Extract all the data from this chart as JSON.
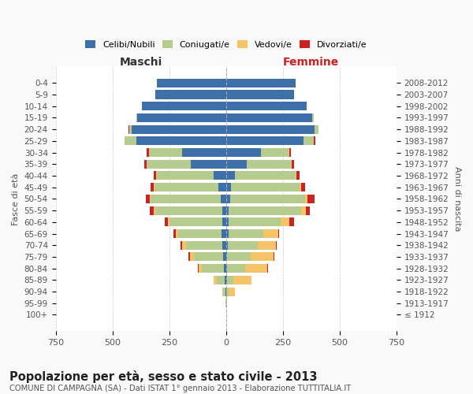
{
  "age_groups": [
    "100+",
    "95-99",
    "90-94",
    "85-89",
    "80-84",
    "75-79",
    "70-74",
    "65-69",
    "60-64",
    "55-59",
    "50-54",
    "45-49",
    "40-44",
    "35-39",
    "30-34",
    "25-29",
    "20-24",
    "15-19",
    "10-14",
    "5-9",
    "0-4"
  ],
  "birth_years": [
    "≤ 1912",
    "1913-1917",
    "1918-1922",
    "1923-1927",
    "1928-1932",
    "1933-1937",
    "1938-1942",
    "1943-1947",
    "1948-1952",
    "1953-1957",
    "1958-1962",
    "1963-1967",
    "1968-1972",
    "1973-1977",
    "1978-1982",
    "1983-1987",
    "1988-1992",
    "1993-1997",
    "1998-2002",
    "2003-2007",
    "2008-2012"
  ],
  "male": {
    "celibi": [
      0,
      0,
      2,
      5,
      10,
      12,
      15,
      20,
      18,
      18,
      22,
      35,
      55,
      155,
      195,
      395,
      415,
      390,
      370,
      310,
      305
    ],
    "coniugati": [
      0,
      2,
      10,
      35,
      95,
      130,
      160,
      190,
      230,
      295,
      310,
      280,
      250,
      195,
      145,
      50,
      12,
      5,
      0,
      0,
      0
    ],
    "vedovi": [
      0,
      0,
      5,
      15,
      15,
      18,
      18,
      12,
      8,
      5,
      3,
      2,
      2,
      0,
      0,
      0,
      0,
      0,
      0,
      0,
      0
    ],
    "divorziati": [
      0,
      0,
      0,
      0,
      5,
      5,
      8,
      8,
      15,
      18,
      18,
      15,
      12,
      10,
      8,
      3,
      2,
      0,
      0,
      0,
      0
    ]
  },
  "female": {
    "nubili": [
      0,
      0,
      2,
      3,
      5,
      5,
      8,
      10,
      10,
      12,
      18,
      22,
      40,
      90,
      155,
      340,
      390,
      380,
      355,
      300,
      305
    ],
    "coniugate": [
      0,
      2,
      10,
      28,
      80,
      105,
      130,
      155,
      230,
      320,
      330,
      300,
      265,
      195,
      120,
      45,
      15,
      5,
      0,
      0,
      0
    ],
    "vedove": [
      0,
      2,
      28,
      80,
      95,
      100,
      80,
      65,
      40,
      18,
      10,
      8,
      5,
      3,
      2,
      2,
      0,
      0,
      0,
      0,
      0
    ],
    "divorziate": [
      0,
      0,
      0,
      0,
      3,
      3,
      5,
      5,
      18,
      20,
      32,
      18,
      15,
      12,
      10,
      5,
      2,
      0,
      0,
      0,
      0
    ]
  },
  "colors": {
    "celibi": "#3d6fa8",
    "coniugati": "#b5cc8e",
    "vedovi": "#f5c468",
    "divorziati": "#cc2222"
  },
  "xlim": 750,
  "title": "Popolazione per età, sesso e stato civile - 2013",
  "subtitle": "COMUNE DI CAMPAGNA (SA) - Dati ISTAT 1° gennaio 2013 - Elaborazione TUTTITALIA.IT",
  "ylabel_left": "Fasce di età",
  "ylabel_right": "Anni di nascita",
  "xlabel_left": "Maschi",
  "xlabel_right": "Femmine",
  "bg_color": "#f9f9f9",
  "plot_bg": "#ffffff",
  "grid_color": "#cccccc"
}
